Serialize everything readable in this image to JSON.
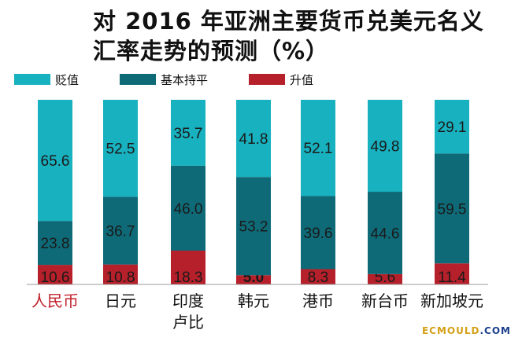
{
  "chart_data": {
    "type": "bar",
    "stacked": true,
    "title": [
      "对 2016 年亚洲主要货币兑美元名义",
      "汇率走势的预测（%）"
    ],
    "categories": [
      "人民币",
      "日元",
      "印度卢比",
      "韩元",
      "港币",
      "新台币",
      "新加坡元"
    ],
    "category_lines": [
      [
        "人民币"
      ],
      [
        "日元"
      ],
      [
        "印度",
        "卢比"
      ],
      [
        "韩元"
      ],
      [
        "港币"
      ],
      [
        "新台币"
      ],
      [
        "新加坡元"
      ]
    ],
    "highlight_category": "人民币",
    "series": [
      {
        "name": "升值",
        "color": "#b5202a",
        "values": [
          10.6,
          10.8,
          18.3,
          5.0,
          8.3,
          5.6,
          11.4
        ]
      },
      {
        "name": "基本持平",
        "color": "#0f6a78",
        "values": [
          23.8,
          36.7,
          46.0,
          53.2,
          39.6,
          44.6,
          59.5
        ]
      },
      {
        "name": "贬值",
        "color": "#18b1bf",
        "values": [
          65.6,
          52.5,
          35.7,
          41.8,
          52.1,
          49.8,
          29.1
        ]
      }
    ],
    "legend": {
      "position": "top-left",
      "order": [
        "贬值",
        "基本持平",
        "升值"
      ]
    },
    "ylim": [
      0,
      100
    ],
    "grid": false,
    "colors": {
      "highlight_label": "#c0202a"
    }
  },
  "watermark": {
    "main": "ECMOULD",
    "suffix": ".COM"
  }
}
